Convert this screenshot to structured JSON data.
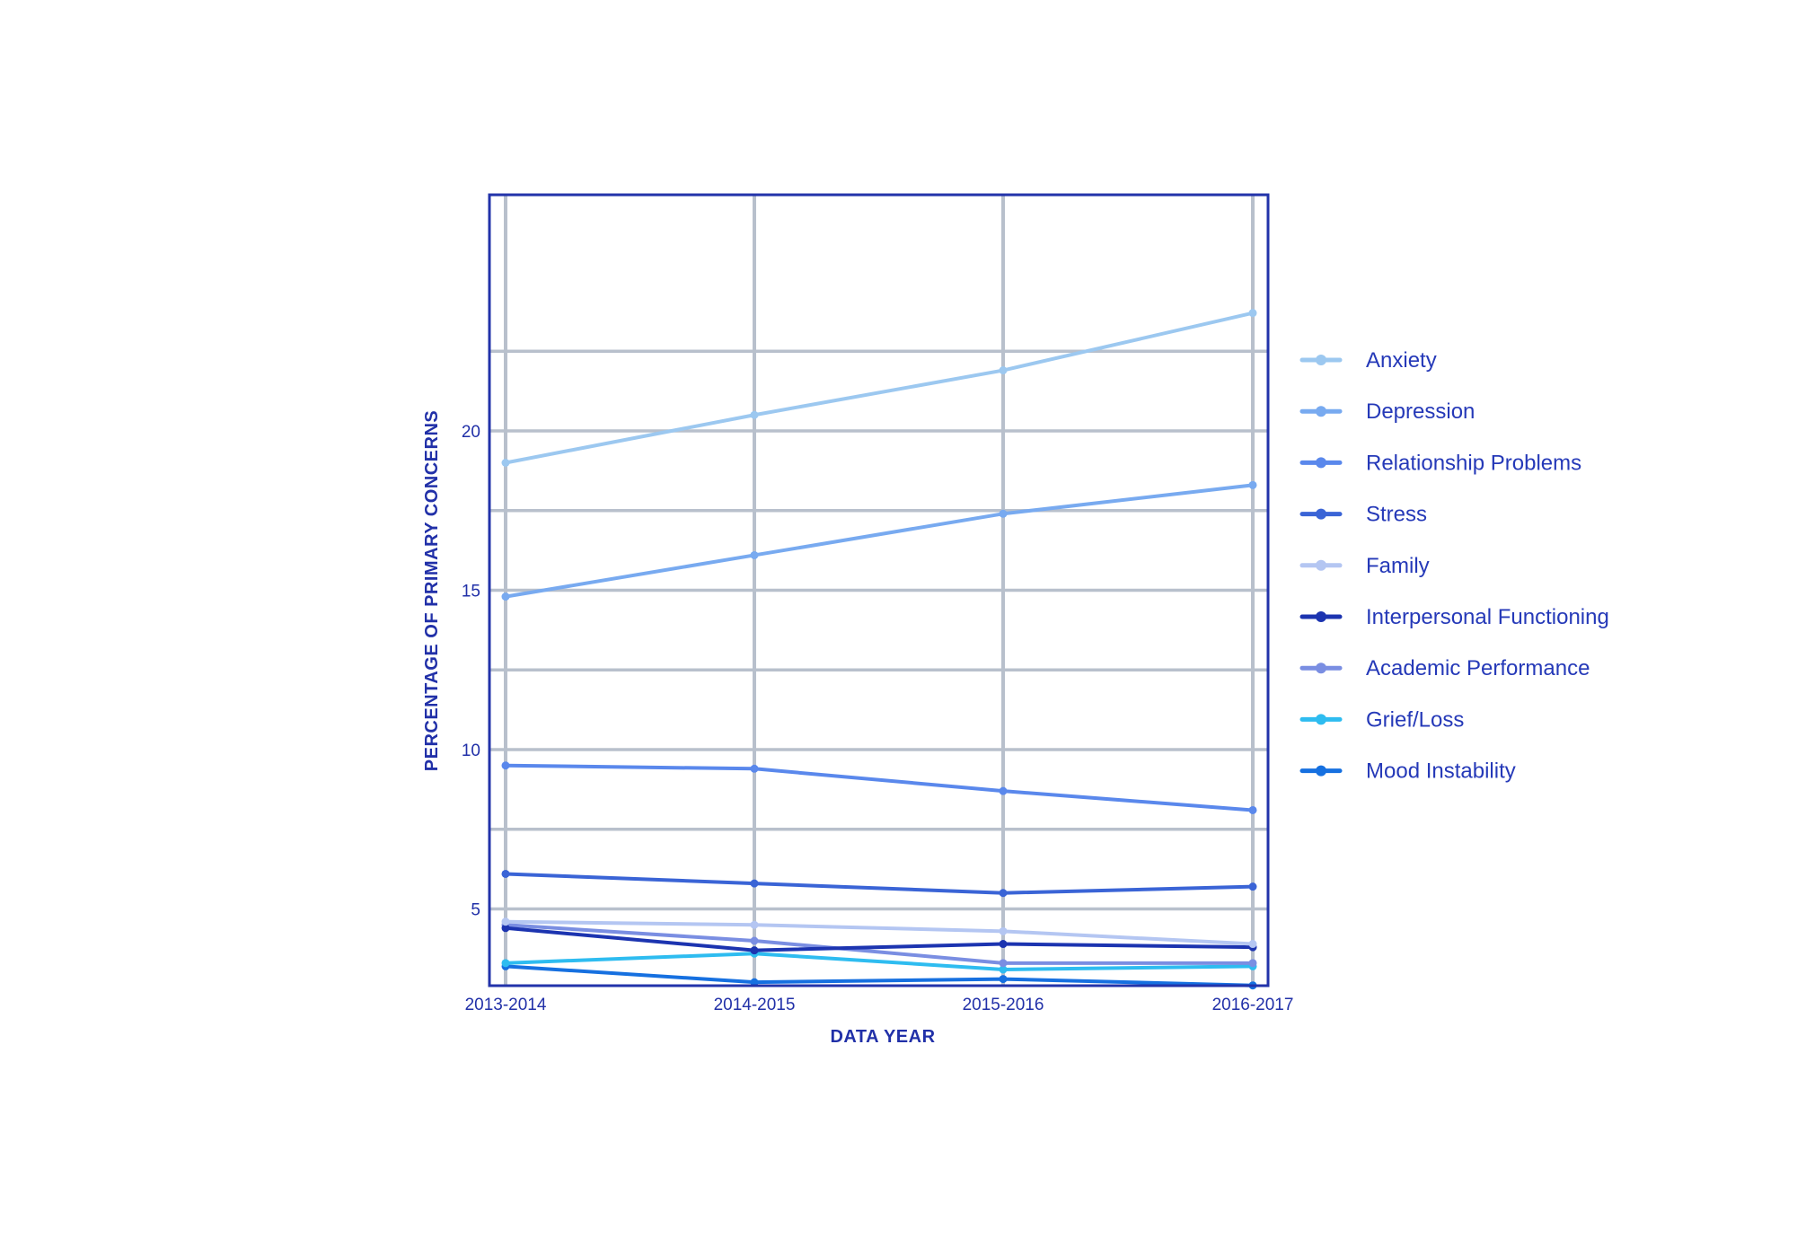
{
  "chart_data": {
    "type": "line",
    "categories": [
      "2013-2014",
      "2014-2015",
      "2015-2016",
      "2016-2017"
    ],
    "xlabel": "DATA YEAR",
    "ylabel": "PERCENTAGE OF PRIMARY CONCERNS",
    "ylim": [
      0,
      24.8
    ],
    "yticks": [
      5,
      10,
      15,
      20
    ],
    "grid": true,
    "legend_position": "right",
    "series": [
      {
        "name": "Anxiety",
        "color": "#9cc8f0",
        "values": [
          19.0,
          20.5,
          21.9,
          23.7
        ]
      },
      {
        "name": "Depression",
        "color": "#78aaf0",
        "values": [
          14.8,
          16.1,
          17.4,
          18.3
        ]
      },
      {
        "name": "Relationship Problems",
        "color": "#5a88ec",
        "values": [
          9.5,
          9.4,
          8.7,
          8.1
        ]
      },
      {
        "name": "Stress",
        "color": "#3a64d6",
        "values": [
          6.1,
          5.8,
          5.5,
          5.7
        ]
      },
      {
        "name": "Family",
        "color": "#b4c6f2",
        "values": [
          4.6,
          4.5,
          4.3,
          3.9
        ]
      },
      {
        "name": "Interpersonal Functioning",
        "color": "#1c34b0",
        "values": [
          4.4,
          3.7,
          3.9,
          3.8
        ]
      },
      {
        "name": "Academic Performance",
        "color": "#7a8ee2",
        "values": [
          4.5,
          4.0,
          3.3,
          3.3
        ]
      },
      {
        "name": "Grief/Loss",
        "color": "#2ebcf0",
        "values": [
          3.3,
          3.6,
          3.1,
          3.2
        ]
      },
      {
        "name": "Mood Instability",
        "color": "#1670e0",
        "values": [
          3.2,
          2.7,
          2.8,
          2.6
        ]
      }
    ]
  }
}
